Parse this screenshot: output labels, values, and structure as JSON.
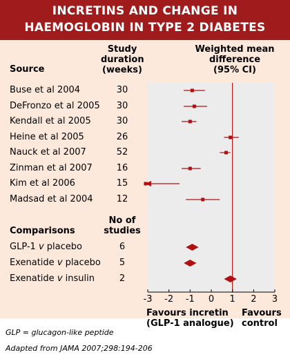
{
  "title_line1": "INCRETINS AND CHANGE IN",
  "title_line2": "HAEMOGLOBIN IN TYPE 2 DIABETES",
  "headers": {
    "source": "Source",
    "duration": [
      "Study",
      "duration",
      "(weeks)"
    ],
    "wmd": [
      "Weighted mean",
      "difference",
      "(95% CI)"
    ],
    "comparisons": "Comparisons",
    "n_studies": [
      "No of",
      "studies"
    ]
  },
  "favours": {
    "left": [
      "Favours incretin",
      "(GLP-1 analogue)"
    ],
    "right": [
      "Favours",
      "control"
    ]
  },
  "footnote": "GLP = glucagon-like peptide",
  "source_note": "Adapted from JAMA 2007;298:194-206",
  "colors": {
    "banner": "#a01c1c",
    "marker": "#b01010",
    "panel": "#fde8dc",
    "plot_bg": "#ececec"
  },
  "chart_data": {
    "type": "forest",
    "x_range": [
      -3,
      3
    ],
    "x_ticks": [
      "-3",
      "-2",
      "-1",
      "0",
      "1",
      "2",
      "3"
    ],
    "reference_line": 1,
    "studies": [
      {
        "label": "Buse et al 2004",
        "duration": "30",
        "est": -0.9,
        "lo": -1.3,
        "hi": -0.3
      },
      {
        "label": "DeFronzo et al 2005",
        "duration": "30",
        "est": -0.8,
        "lo": -1.3,
        "hi": -0.2
      },
      {
        "label": "Kendall et al 2005",
        "duration": "30",
        "est": -1.0,
        "lo": -1.4,
        "hi": -0.7
      },
      {
        "label": "Heine et al 2005",
        "duration": "26",
        "est": 0.9,
        "lo": 0.6,
        "hi": 1.3
      },
      {
        "label": "Nauck et al 2007",
        "duration": "52",
        "est": 0.7,
        "lo": 0.4,
        "hi": 0.9
      },
      {
        "label": "Zinman et al 2007",
        "duration": "16",
        "est": -1.0,
        "lo": -1.4,
        "hi": -0.5
      },
      {
        "label": "Kim et al 2006",
        "duration": "15",
        "est": -3.1,
        "lo": -3.1,
        "hi": -1.5,
        "arrow_left": true
      },
      {
        "label": "Madsad et al 2004",
        "duration": "12",
        "est": -0.4,
        "lo": -1.2,
        "hi": 0.4
      }
    ],
    "comparisons": [
      {
        "label_parts": [
          "GLP-1 ",
          "v",
          " placebo"
        ],
        "n": "6",
        "est": -0.9,
        "lo": -1.2,
        "hi": -0.6
      },
      {
        "label_parts": [
          "Exenatide ",
          "v",
          " placebo"
        ],
        "n": "5",
        "est": -1.0,
        "lo": -1.3,
        "hi": -0.7
      },
      {
        "label_parts": [
          "Exenatide ",
          "v",
          " insulin"
        ],
        "n": "2",
        "est": 0.9,
        "lo": 0.6,
        "hi": 1.2
      }
    ]
  }
}
